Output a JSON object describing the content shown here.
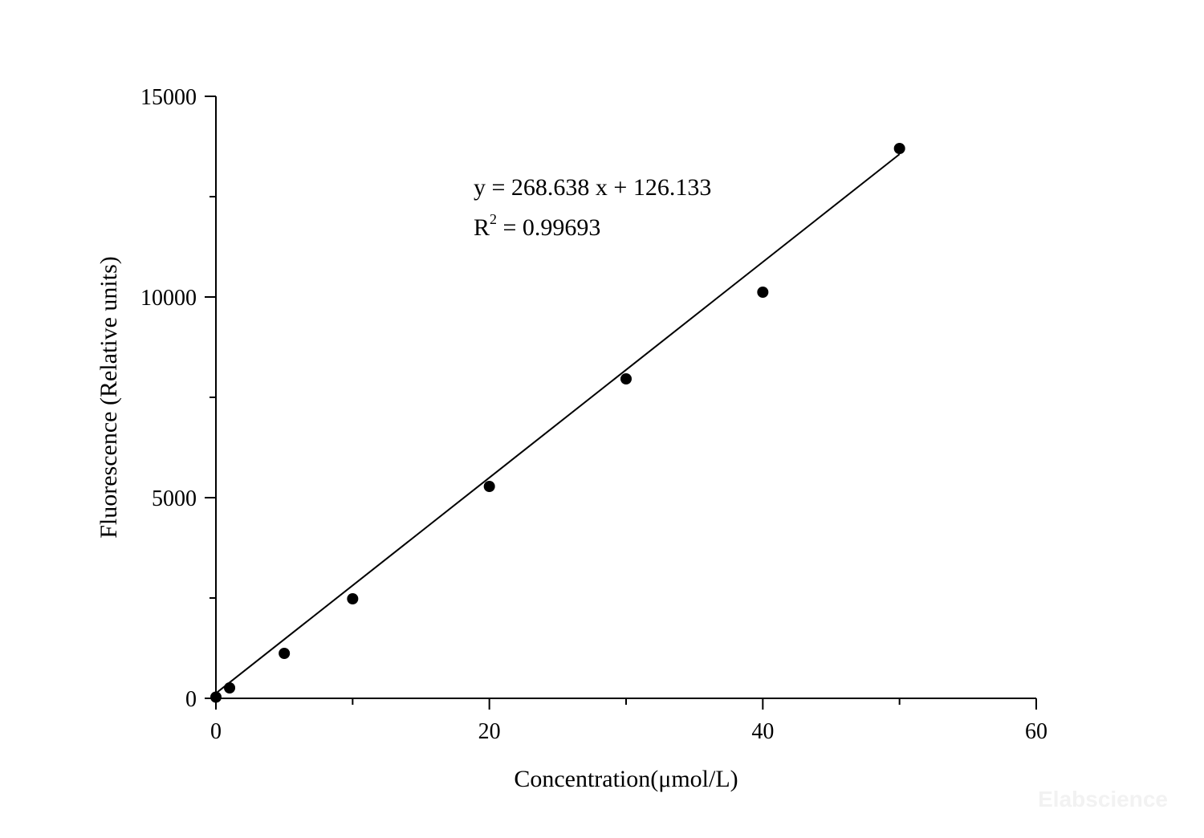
{
  "chart_data": {
    "type": "scatter",
    "x_label": "Concentration(μmol/L)",
    "y_label": "Fluorescence (Relative units)",
    "x": [
      0,
      1,
      5,
      10,
      20,
      30,
      40,
      50
    ],
    "values": [
      30,
      260,
      1120,
      2480,
      5280,
      7960,
      10120,
      13700
    ],
    "color": "#000000",
    "xlim": [
      0,
      60
    ],
    "xticks": [
      0,
      20,
      40,
      60
    ],
    "ylim": [
      0,
      15000
    ],
    "yticks": [
      0,
      5000,
      10000,
      15000
    ],
    "minor_ticks": true,
    "fit": {
      "slope": 268.638,
      "intercept": 126.133,
      "x_range": [
        0,
        50
      ]
    },
    "annotations": {
      "equation": "y = 268.638 x + 126.133",
      "r2_symbol": "R",
      "r2_exponent": "2",
      "r2_value": " = 0.99693"
    },
    "watermark": "Elabscience"
  }
}
